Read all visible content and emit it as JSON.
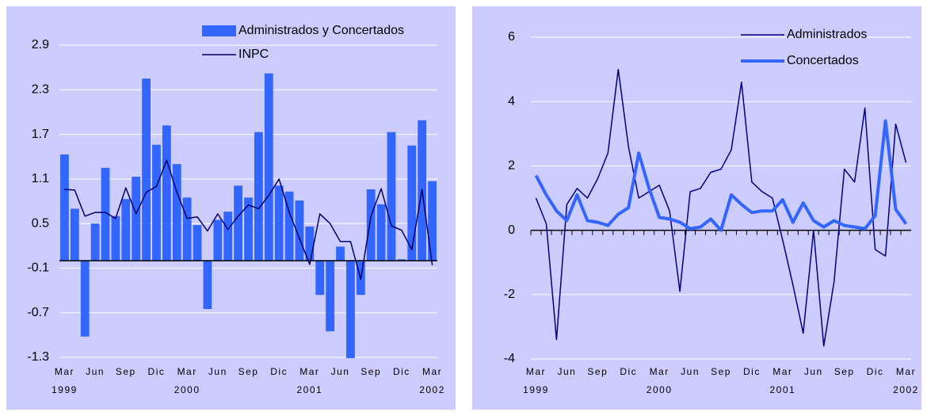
{
  "chart_data": [
    {
      "type": "combo",
      "categories": [
        "Mar",
        null,
        null,
        "Jun",
        null,
        null,
        "Sep",
        null,
        null,
        "Dic",
        null,
        null,
        "Mar",
        null,
        null,
        "Jun",
        null,
        null,
        "Sep",
        null,
        null,
        "Dic",
        null,
        null,
        "Mar",
        null,
        null,
        "Jun",
        null,
        null,
        "Sep",
        null,
        null,
        "Dic",
        null,
        null,
        "Mar"
      ],
      "years": [
        "1999",
        null,
        null,
        null,
        null,
        null,
        null,
        null,
        null,
        null,
        null,
        null,
        "2000",
        null,
        null,
        null,
        null,
        null,
        null,
        null,
        null,
        null,
        null,
        null,
        "2001",
        null,
        null,
        null,
        null,
        null,
        null,
        null,
        null,
        null,
        null,
        null,
        "2002"
      ],
      "ylim": [
        -1.3,
        2.9
      ],
      "yticks": [
        -1.3,
        -0.7,
        -0.1,
        0.5,
        1.1,
        1.7,
        2.3,
        2.9
      ],
      "grid": true,
      "series": [
        {
          "name": "Administrados y Concertados",
          "type": "bar",
          "color": "#3366ff",
          "values": [
            1.43,
            0.7,
            -1.02,
            0.5,
            1.25,
            0.6,
            0.83,
            1.13,
            2.45,
            1.56,
            1.82,
            1.3,
            0.85,
            0.48,
            -0.65,
            0.55,
            0.66,
            1.01,
            0.85,
            1.73,
            2.52,
            1.01,
            0.93,
            0.81,
            0.46,
            -0.46,
            -0.95,
            0.19,
            -1.31,
            -0.46,
            0.96,
            0.76,
            1.73,
            0.02,
            1.55,
            1.89,
            1.07
          ]
        },
        {
          "name": "INPC",
          "type": "line",
          "color": "#000066",
          "values": [
            0.96,
            0.95,
            0.6,
            0.65,
            0.65,
            0.57,
            0.98,
            0.63,
            0.92,
            1.0,
            1.35,
            0.92,
            0.57,
            0.59,
            0.4,
            0.63,
            0.42,
            0.6,
            0.75,
            0.7,
            0.88,
            1.1,
            0.65,
            0.3,
            -0.05,
            0.63,
            0.5,
            0.26,
            0.26,
            -0.25,
            0.6,
            0.97,
            0.47,
            0.41,
            0.15,
            0.96,
            -0.06
          ]
        }
      ]
    },
    {
      "type": "line",
      "categories": [
        "Mar",
        null,
        null,
        "Jun",
        null,
        null,
        "Sep",
        null,
        null,
        "Dic",
        null,
        null,
        "Mar",
        null,
        null,
        "Jun",
        null,
        null,
        "Sep",
        null,
        null,
        "Dic",
        null,
        null,
        "Mar",
        null,
        null,
        "Jun",
        null,
        null,
        "Sep",
        null,
        null,
        "Dic",
        null,
        null,
        "Mar"
      ],
      "years": [
        "1999",
        null,
        null,
        null,
        null,
        null,
        null,
        null,
        null,
        null,
        null,
        null,
        "2000",
        null,
        null,
        null,
        null,
        null,
        null,
        null,
        null,
        null,
        null,
        null,
        "2001",
        null,
        null,
        null,
        null,
        null,
        null,
        null,
        null,
        null,
        null,
        null,
        "2002"
      ],
      "ylim": [
        -4,
        6
      ],
      "yticks": [
        -4,
        -2,
        0,
        2,
        4,
        6
      ],
      "grid": true,
      "series": [
        {
          "name": "Administrados",
          "type": "line",
          "color": "#000080",
          "width": 1.5,
          "values": [
            1.0,
            0.2,
            -3.4,
            0.8,
            1.3,
            1.0,
            1.6,
            2.4,
            5.0,
            2.6,
            1.0,
            1.2,
            1.4,
            0.6,
            -1.9,
            1.2,
            1.3,
            1.8,
            1.9,
            2.5,
            4.6,
            1.5,
            1.2,
            1.0,
            -0.3,
            -1.7,
            -3.2,
            0.0,
            -3.6,
            -1.6,
            1.9,
            1.5,
            3.8,
            -0.6,
            -0.8,
            3.3,
            2.1
          ]
        },
        {
          "name": "Concertados",
          "type": "line",
          "color": "#3366ff",
          "width": 4,
          "values": [
            1.7,
            1.1,
            0.6,
            0.3,
            1.1,
            0.3,
            0.25,
            0.15,
            0.5,
            0.7,
            2.4,
            1.3,
            0.4,
            0.35,
            0.25,
            0.05,
            0.1,
            0.35,
            0.0,
            1.1,
            0.8,
            0.55,
            0.6,
            0.6,
            0.95,
            0.25,
            0.85,
            0.3,
            0.1,
            0.3,
            0.15,
            0.1,
            0.05,
            0.45,
            3.4,
            0.65,
            0.2
          ]
        }
      ]
    }
  ]
}
